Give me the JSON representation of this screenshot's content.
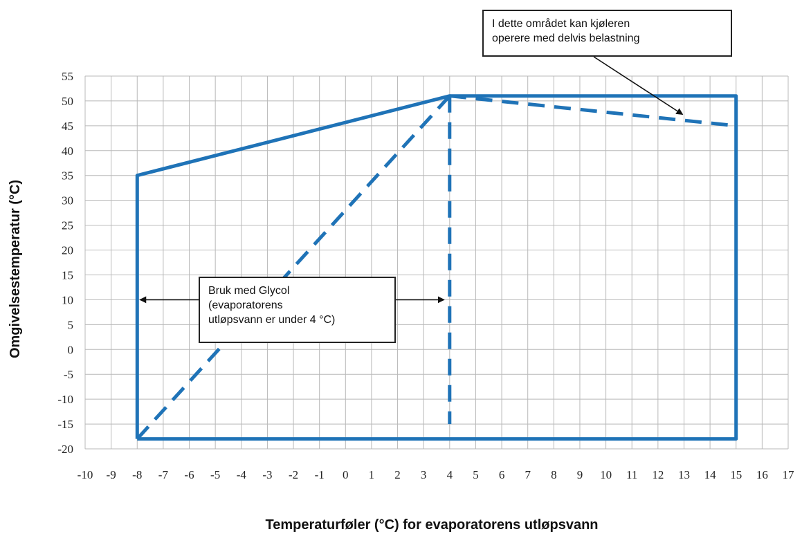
{
  "chart_data": {
    "type": "line",
    "title": "",
    "xlabel": "Temperaturføler (°C) for evaporatorens utløpsvann",
    "ylabel": "Omgivelsestemperatur (°C)",
    "xlim": [
      -10,
      17
    ],
    "ylim": [
      -20,
      55
    ],
    "x_ticks": [
      "-10",
      "-9",
      "-8",
      "-7",
      "-6",
      "-5",
      "-4",
      "-3",
      "-2",
      "-1",
      "0",
      "1",
      "2",
      "3",
      "4",
      "5",
      "6",
      "7",
      "8",
      "9",
      "10",
      "11",
      "12",
      "13",
      "14",
      "15",
      "16",
      "17"
    ],
    "y_ticks": [
      "55",
      "50",
      "45",
      "40",
      "35",
      "30",
      "25",
      "20",
      "15",
      "10",
      "5",
      "0",
      "-5",
      "-10",
      "-15",
      "-20"
    ],
    "grid": true,
    "series_color": "#1f73b7",
    "series": [
      {
        "style": "solid",
        "x": [
          -8,
          -8,
          4,
          15,
          15,
          -8
        ],
        "y": [
          -18,
          35,
          51,
          51,
          -18,
          -18
        ]
      },
      {
        "style": "dashed",
        "x": [
          -8,
          4
        ],
        "y": [
          -18,
          51
        ]
      },
      {
        "style": "dashed",
        "x": [
          4,
          4
        ],
        "y": [
          51,
          -15
        ]
      },
      {
        "style": "dashed",
        "x": [
          4,
          15
        ],
        "y": [
          51,
          45
        ]
      }
    ],
    "annotations": [
      {
        "id": "partial",
        "lines": [
          "I dette området kan kjøleren",
          "operere med delvis belastning"
        ],
        "points_to": [
          13,
          47
        ]
      },
      {
        "id": "glycol",
        "lines": [
          "Bruk med Glycol",
          "(evaporatorens",
          "utløpsvann er under 4 °C)"
        ],
        "points_to": [
          [
            -8,
            10
          ],
          [
            4,
            10
          ]
        ]
      }
    ]
  }
}
